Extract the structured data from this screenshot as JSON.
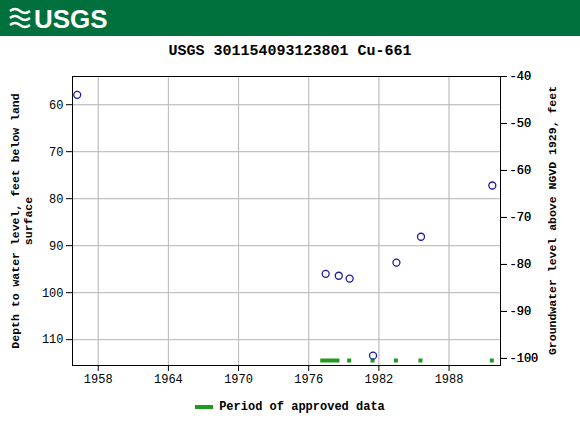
{
  "chart_data": {
    "type": "scatter",
    "header": "USGS",
    "title": "USGS 301154093123801 Cu-661",
    "ylabel": "Depth to water level, feet below land surface",
    "y2label": "Groundwater level above NGVD 1929, feet",
    "x": [
      1956.2,
      1977.45,
      1978.57,
      1979.5,
      1981.5,
      1983.5,
      1985.6,
      1991.7
    ],
    "values": [
      57.9,
      96.0,
      96.4,
      97.0,
      113.4,
      93.6,
      88.1,
      77.2
    ],
    "color": "#1a1aa6",
    "marker": "circle-open",
    "xlim": [
      1955.8,
      1992.4
    ],
    "xticks": [
      1958,
      1964,
      1970,
      1976,
      1982,
      1988
    ],
    "ylim": [
      54,
      115.5
    ],
    "yticks": [
      60,
      70,
      80,
      90,
      100,
      110
    ],
    "y2lim": [
      -101.5,
      -40
    ],
    "y2ticks": [
      -40,
      -50,
      -60,
      -70,
      -80,
      -90,
      -100
    ],
    "grid": true,
    "legend": "bottom",
    "approved_periods": {
      "name": "Period of approved data",
      "color": "#1e9b1e",
      "ranges": [
        [
          1977.2,
          1978.5
        ],
        [
          1979.5,
          1979.5
        ],
        [
          1981.5,
          1981.5
        ],
        [
          1983.5,
          1983.5
        ],
        [
          1985.6,
          1985.6
        ],
        [
          1991.7,
          1991.7
        ]
      ]
    }
  }
}
